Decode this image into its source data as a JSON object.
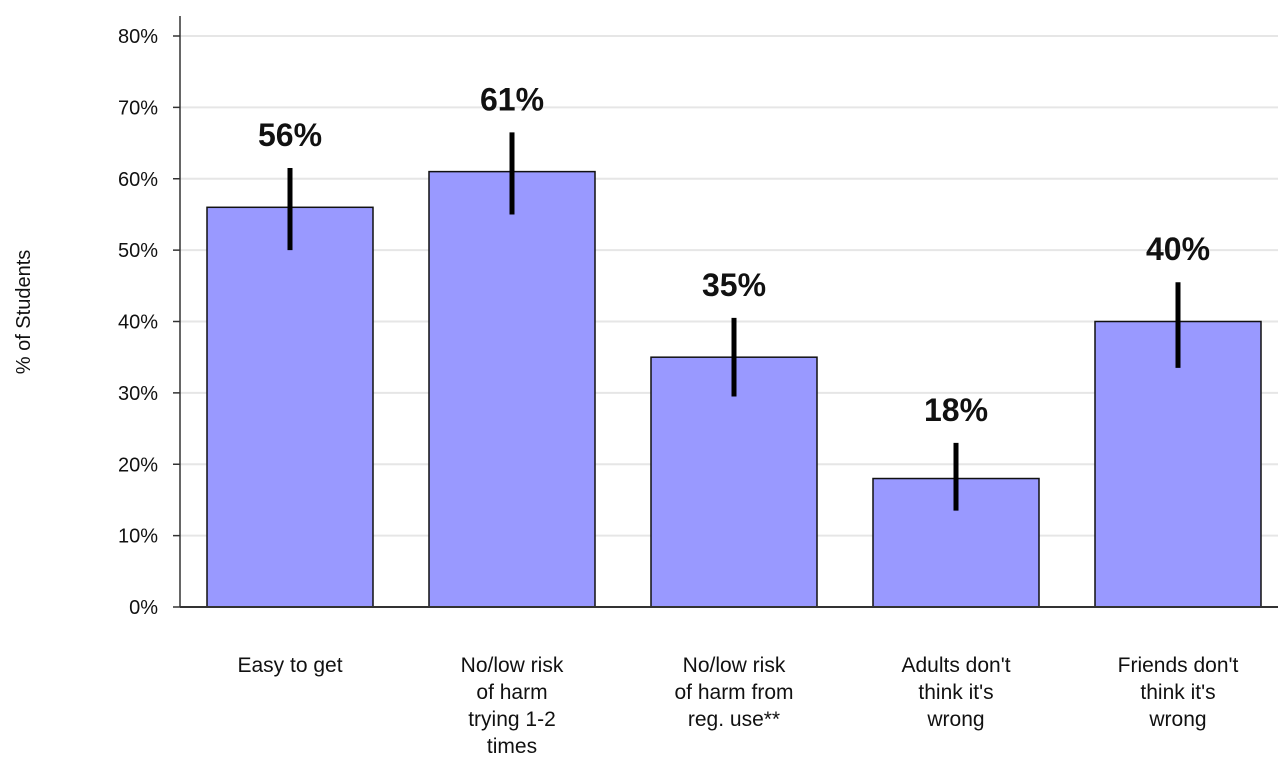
{
  "chart_data": {
    "type": "bar",
    "ylabel": "% of Students",
    "ylim": [
      0,
      80
    ],
    "y_ticks": [
      "0%",
      "10%",
      "20%",
      "30%",
      "40%",
      "50%",
      "60%",
      "70%",
      "80%"
    ],
    "grid": true,
    "categories": [
      [
        "Easy to get"
      ],
      [
        "No/low risk",
        "of harm",
        "trying 1-2",
        "times"
      ],
      [
        "No/low risk",
        "of harm from",
        "reg. use**"
      ],
      [
        "Adults don't",
        "think it's",
        "wrong"
      ],
      [
        "Friends don't",
        "think it's",
        "wrong"
      ]
    ],
    "values": [
      56,
      61,
      35,
      18,
      40
    ],
    "data_labels": [
      "56%",
      "61%",
      "35%",
      "18%",
      "40%"
    ],
    "error_bars": [
      [
        50,
        61.5
      ],
      [
        55,
        66.5
      ],
      [
        29.5,
        40.5
      ],
      [
        13.5,
        23
      ],
      [
        33.5,
        45.5
      ]
    ],
    "bar_color": "#9999ff",
    "bar_edge_color": "#111111",
    "error_bar_color": "#000000",
    "grid_color": "#e6e6e6"
  }
}
